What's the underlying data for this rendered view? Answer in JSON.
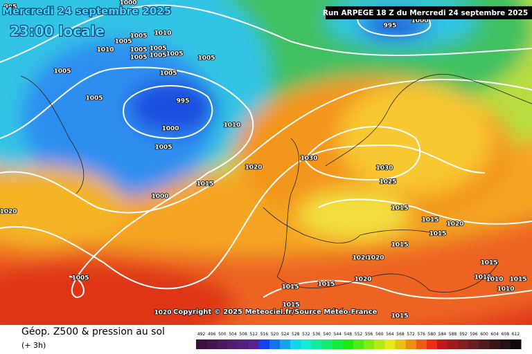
{
  "header": {
    "date": "Mercredi 24 septembre 2025",
    "time": "23:00 locale",
    "run": "Run ARPEGE 18 Z du Mercredi 24 septembre 2025"
  },
  "copyright": "Copyright © 2025 Meteociel.fr/Source Météo-France",
  "isobar_labels": [
    "995",
    "1000",
    "1005",
    "1010",
    "1010",
    "1005",
    "1005",
    "1005",
    "1005",
    "1005",
    "1005",
    "1005",
    "1005",
    "1005",
    "1005",
    "995",
    "1000",
    "1010",
    "1005",
    "1020",
    "1030",
    "1030",
    "1025",
    "1015",
    "1000",
    "1020",
    "1015",
    "1015",
    "1020",
    "1015",
    "1015",
    "1020",
    "1020",
    "1015",
    "1015",
    "1015",
    "1020",
    "1005",
    "1015",
    "1010",
    "1010",
    "1015",
    "1020",
    "1015",
    "1015",
    "995",
    "1000"
  ],
  "legend": {
    "title": "Géop. Z500 & pression au sol",
    "subtitle": "(+ 3h)",
    "ticks": [
      492,
      496,
      500,
      504,
      508,
      512,
      516,
      520,
      524,
      528,
      532,
      536,
      540,
      544,
      548,
      552,
      556,
      560,
      564,
      568,
      572,
      576,
      580,
      584,
      588,
      592,
      596,
      600,
      604,
      608,
      612
    ]
  }
}
